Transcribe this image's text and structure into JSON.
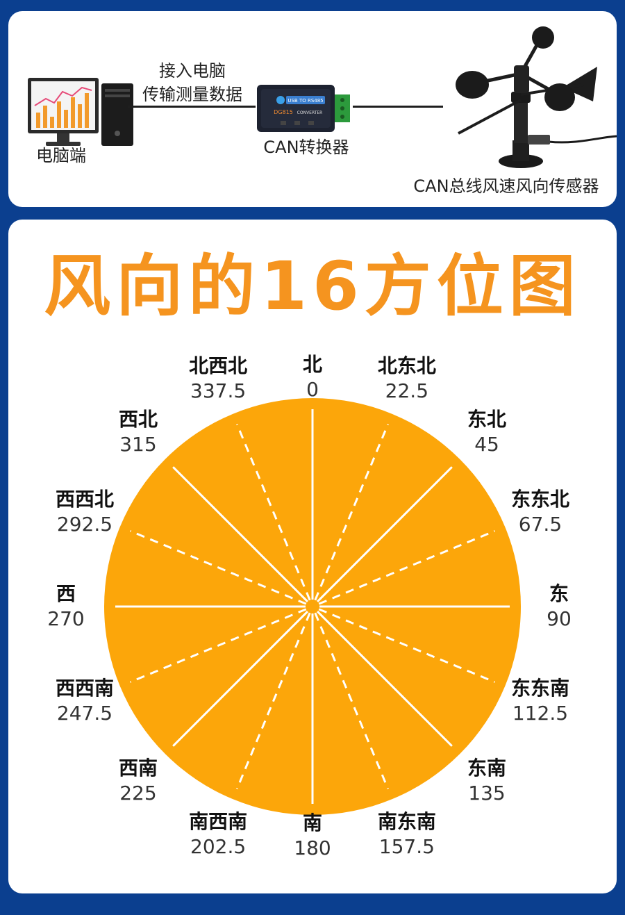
{
  "top": {
    "link_label_line1": "接入电脑",
    "link_label_line2": "传输测量数据",
    "pc_label": "电脑端",
    "converter_label": "CAN转换器",
    "sensor_label": "CAN总线风速风向传感器",
    "converter_print": "USB TO RS485",
    "converter_model": "DG815",
    "converter_sub": "CONVERTER"
  },
  "title": "风向的16方位图",
  "colors": {
    "accent": "#f5941f",
    "disk": "#fca60a",
    "background": "#0b3f8f"
  },
  "directions": [
    {
      "name": "北",
      "deg": "0"
    },
    {
      "name": "北东北",
      "deg": "22.5"
    },
    {
      "name": "东北",
      "deg": "45"
    },
    {
      "name": "东东北",
      "deg": "67.5"
    },
    {
      "name": "东",
      "deg": "90"
    },
    {
      "name": "东东南",
      "deg": "112.5"
    },
    {
      "name": "东南",
      "deg": "135"
    },
    {
      "name": "南东南",
      "deg": "157.5"
    },
    {
      "name": "南",
      "deg": "180"
    },
    {
      "name": "南西南",
      "deg": "202.5"
    },
    {
      "name": "西南",
      "deg": "225"
    },
    {
      "name": "西西南",
      "deg": "247.5"
    },
    {
      "name": "西",
      "deg": "270"
    },
    {
      "name": "西西北",
      "deg": "292.5"
    },
    {
      "name": "西北",
      "deg": "315"
    },
    {
      "name": "北西北",
      "deg": "337.5"
    }
  ]
}
